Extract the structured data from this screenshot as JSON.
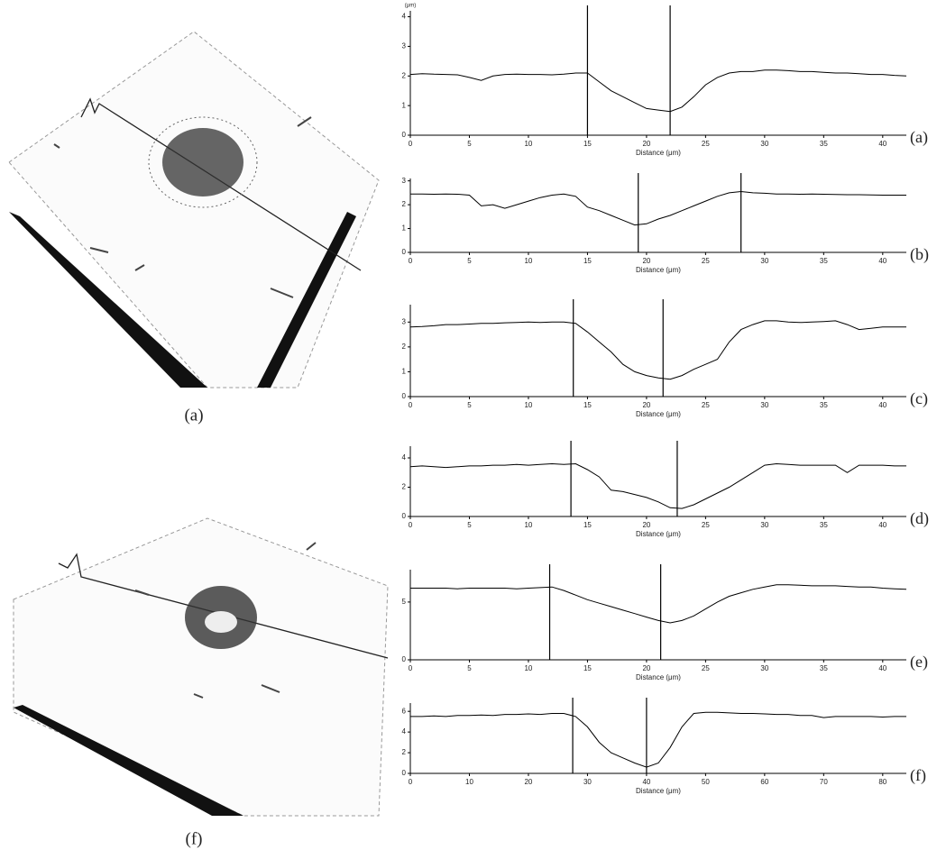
{
  "images": [
    {
      "caption": "(a)"
    },
    {
      "caption": "(f)"
    }
  ],
  "chart_data": [
    {
      "type": "line",
      "panel_label": "(a)",
      "x_label": "Distance (μm)",
      "y_label": "(μm)",
      "x": [
        0,
        1,
        2,
        3,
        4,
        5,
        6,
        7,
        8,
        9,
        10,
        11,
        12,
        13,
        14,
        15,
        16,
        17,
        18,
        19,
        20,
        21,
        22,
        23,
        24,
        25,
        26,
        27,
        28,
        29,
        30,
        31,
        32,
        33,
        34,
        35,
        36,
        37,
        38,
        39,
        40,
        41,
        42
      ],
      "values": [
        2.05,
        2.08,
        2.06,
        2.05,
        2.04,
        1.95,
        1.85,
        2.0,
        2.05,
        2.06,
        2.05,
        2.05,
        2.04,
        2.06,
        2.1,
        2.1,
        1.8,
        1.5,
        1.3,
        1.1,
        0.9,
        0.85,
        0.8,
        0.95,
        1.3,
        1.7,
        1.95,
        2.1,
        2.15,
        2.15,
        2.2,
        2.2,
        2.18,
        2.15,
        2.15,
        2.12,
        2.1,
        2.1,
        2.08,
        2.05,
        2.05,
        2.02,
        2.0
      ],
      "cursors": [
        15,
        22
      ],
      "xlim": [
        0,
        42
      ],
      "ylim": [
        0,
        4.2
      ],
      "xticks": [
        0,
        5,
        10,
        15,
        20,
        25,
        30,
        35,
        40
      ],
      "yticks": [
        0,
        1,
        2,
        3,
        4
      ]
    },
    {
      "type": "line",
      "panel_label": "(b)",
      "x_label": "Distance (μm)",
      "x": [
        0,
        1,
        2,
        3,
        4,
        5,
        6,
        7,
        8,
        9,
        10,
        11,
        12,
        13,
        14,
        15,
        16,
        17,
        18,
        19,
        20,
        21,
        22,
        23,
        24,
        25,
        26,
        27,
        28,
        29,
        30,
        31,
        32,
        33,
        34,
        35,
        36,
        37,
        38,
        39,
        40,
        41,
        42
      ],
      "values": [
        2.45,
        2.45,
        2.44,
        2.45,
        2.44,
        2.4,
        1.95,
        2.0,
        1.85,
        2.0,
        2.15,
        2.3,
        2.4,
        2.45,
        2.35,
        1.9,
        1.75,
        1.55,
        1.35,
        1.15,
        1.2,
        1.4,
        1.55,
        1.75,
        1.95,
        2.15,
        2.35,
        2.5,
        2.55,
        2.5,
        2.48,
        2.45,
        2.45,
        2.44,
        2.45,
        2.44,
        2.43,
        2.42,
        2.42,
        2.41,
        2.4,
        2.4,
        2.4
      ],
      "cursors": [
        19.3,
        28
      ],
      "xlim": [
        0,
        42
      ],
      "ylim": [
        0,
        3.1
      ],
      "xticks": [
        0,
        5,
        10,
        15,
        20,
        25,
        30,
        35,
        40
      ],
      "yticks": [
        0,
        1,
        2,
        3
      ]
    },
    {
      "type": "line",
      "panel_label": "(c)",
      "x_label": "Distance (μm)",
      "x": [
        0,
        1,
        2,
        3,
        4,
        5,
        6,
        7,
        8,
        9,
        10,
        11,
        12,
        13,
        14,
        15,
        16,
        17,
        18,
        19,
        20,
        21,
        22,
        23,
        24,
        25,
        26,
        27,
        28,
        29,
        30,
        31,
        32,
        33,
        34,
        35,
        36,
        37,
        38,
        39,
        40,
        41,
        42
      ],
      "values": [
        2.8,
        2.82,
        2.85,
        2.9,
        2.9,
        2.92,
        2.95,
        2.95,
        2.97,
        2.98,
        3.0,
        2.98,
        3.0,
        3.0,
        2.95,
        2.6,
        2.2,
        1.8,
        1.3,
        1.0,
        0.85,
        0.75,
        0.7,
        0.85,
        1.1,
        1.3,
        1.5,
        2.2,
        2.7,
        2.9,
        3.05,
        3.05,
        3.0,
        2.98,
        3.0,
        3.02,
        3.05,
        2.9,
        2.7,
        2.75,
        2.8,
        2.8,
        2.8
      ],
      "cursors": [
        13.8,
        21.4
      ],
      "xlim": [
        0,
        42
      ],
      "ylim": [
        0,
        3.7
      ],
      "xticks": [
        0,
        5,
        10,
        15,
        20,
        25,
        30,
        35,
        40
      ],
      "yticks": [
        0,
        1,
        2,
        3
      ]
    },
    {
      "type": "line",
      "panel_label": "(d)",
      "x_label": "Distance (μm)",
      "x": [
        0,
        1,
        2,
        3,
        4,
        5,
        6,
        7,
        8,
        9,
        10,
        11,
        12,
        13,
        14,
        15,
        16,
        17,
        18,
        19,
        20,
        21,
        22,
        23,
        24,
        25,
        26,
        27,
        28,
        29,
        30,
        31,
        32,
        33,
        34,
        35,
        36,
        37,
        38,
        39,
        40,
        41,
        42
      ],
      "values": [
        3.4,
        3.45,
        3.4,
        3.35,
        3.4,
        3.45,
        3.45,
        3.5,
        3.5,
        3.55,
        3.5,
        3.55,
        3.6,
        3.55,
        3.6,
        3.2,
        2.7,
        1.8,
        1.7,
        1.5,
        1.3,
        1.0,
        0.6,
        0.55,
        0.8,
        1.2,
        1.6,
        2.0,
        2.5,
        3.0,
        3.5,
        3.6,
        3.55,
        3.5,
        3.5,
        3.5,
        3.5,
        3.0,
        3.5,
        3.5,
        3.5,
        3.45,
        3.45
      ],
      "cursors": [
        13.6,
        22.6
      ],
      "xlim": [
        0,
        42
      ],
      "ylim": [
        0,
        4.8
      ],
      "xticks": [
        0,
        5,
        10,
        15,
        20,
        25,
        30,
        35,
        40
      ],
      "yticks": [
        0,
        2,
        4
      ]
    },
    {
      "type": "line",
      "panel_label": "(e)",
      "x_label": "Distance (μm)",
      "x": [
        0,
        1,
        2,
        3,
        4,
        5,
        6,
        7,
        8,
        9,
        10,
        11,
        12,
        13,
        14,
        15,
        16,
        17,
        18,
        19,
        20,
        21,
        22,
        23,
        24,
        25,
        26,
        27,
        28,
        29,
        30,
        31,
        32,
        33,
        34,
        35,
        36,
        37,
        38,
        39,
        40,
        41,
        42
      ],
      "values": [
        6.2,
        6.2,
        6.2,
        6.2,
        6.15,
        6.2,
        6.2,
        6.2,
        6.2,
        6.15,
        6.2,
        6.25,
        6.3,
        6.0,
        5.6,
        5.2,
        4.9,
        4.6,
        4.3,
        4.0,
        3.7,
        3.4,
        3.2,
        3.4,
        3.8,
        4.4,
        5.0,
        5.5,
        5.8,
        6.1,
        6.3,
        6.5,
        6.5,
        6.45,
        6.4,
        6.4,
        6.4,
        6.35,
        6.3,
        6.3,
        6.2,
        6.15,
        6.1
      ],
      "cursors": [
        11.8,
        21.2
      ],
      "xlim": [
        0,
        42
      ],
      "ylim": [
        0,
        7.8
      ],
      "xticks": [
        0,
        5,
        10,
        15,
        20,
        25,
        30,
        35,
        40
      ],
      "yticks": [
        0,
        5
      ]
    },
    {
      "type": "line",
      "panel_label": "(f)",
      "x_label": "Distance (μm)",
      "x": [
        0,
        2,
        4,
        6,
        8,
        10,
        12,
        14,
        16,
        18,
        20,
        22,
        24,
        26,
        28,
        30,
        32,
        34,
        36,
        38,
        40,
        42,
        44,
        46,
        48,
        50,
        52,
        54,
        56,
        58,
        60,
        62,
        64,
        66,
        68,
        70,
        72,
        74,
        76,
        78,
        80,
        82,
        84
      ],
      "values": [
        5.5,
        5.5,
        5.55,
        5.5,
        5.6,
        5.6,
        5.65,
        5.6,
        5.7,
        5.7,
        5.75,
        5.7,
        5.8,
        5.8,
        5.5,
        4.5,
        3.0,
        2.0,
        1.5,
        1.0,
        0.6,
        1.0,
        2.5,
        4.5,
        5.8,
        5.9,
        5.9,
        5.85,
        5.8,
        5.8,
        5.75,
        5.7,
        5.7,
        5.6,
        5.6,
        5.4,
        5.5,
        5.5,
        5.5,
        5.5,
        5.45,
        5.5,
        5.5
      ],
      "cursors": [
        27.5,
        40
      ],
      "xlim": [
        0,
        84
      ],
      "ylim": [
        0,
        6.8
      ],
      "xticks": [
        0,
        10,
        20,
        30,
        40,
        50,
        60,
        70,
        80
      ],
      "yticks": [
        0,
        2,
        4,
        6
      ]
    }
  ]
}
